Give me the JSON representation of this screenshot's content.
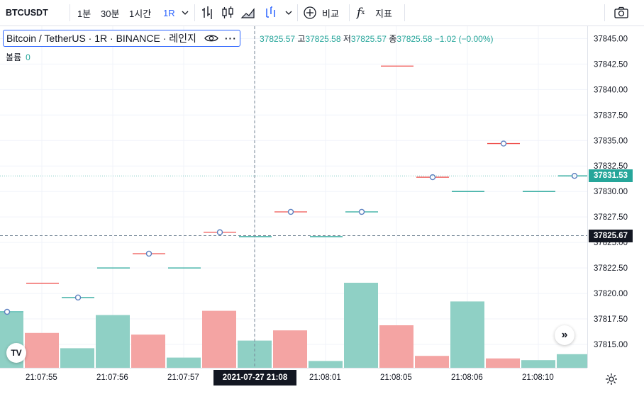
{
  "toolbar": {
    "symbol": "BTCUSDT",
    "intervals": [
      "1분",
      "30분",
      "1시간",
      "1R"
    ],
    "active_interval": "1R",
    "compare_label": "비교",
    "indicators_label": "지표"
  },
  "legend": {
    "title": "Bitcoin / TetherUS · 1R · BINANCE · 레인지",
    "open_label": "",
    "open": "37825.57",
    "high_label": "고",
    "high": "37825.58",
    "low_label": "저",
    "low": "37825.57",
    "close_label": "종",
    "close": "37825.58",
    "change": "−1.02 (−0.00%)",
    "volume_label": "볼륨",
    "volume": "0"
  },
  "price_axis": {
    "ticks": [
      "37845.00",
      "37842.50",
      "37840.00",
      "37837.50",
      "37835.00",
      "37832.50",
      "37830.00",
      "37827.50",
      "37825.00",
      "37822.50",
      "37820.00",
      "37817.50",
      "37815.00"
    ],
    "last_price": "37831.53",
    "crosshair_price": "37825.67"
  },
  "time_axis": {
    "labels": [
      "21:07:55",
      "21:07:56",
      "21:07:57",
      "21:08:01",
      "21:08:05",
      "21:08:06",
      "21:08:10"
    ],
    "crosshair_time": "2021-07-27  21:08"
  },
  "colors": {
    "up": "#26a69a",
    "down": "#ef5350",
    "vol_up": "#8fd0c5",
    "vol_down": "#f4a4a3",
    "accent": "#2962ff"
  },
  "chart_data": {
    "type": "candlestick",
    "ylim": [
      37812.5,
      37846
    ],
    "bars": [
      {
        "price": 37818.2,
        "dir": "up",
        "volume": 0.65,
        "circle": true
      },
      {
        "price": 37821.0,
        "dir": "down",
        "volume": 0.41
      },
      {
        "price": 37819.6,
        "dir": "up",
        "volume": 0.23,
        "circle": true
      },
      {
        "price": 37822.5,
        "dir": "up",
        "volume": 0.62
      },
      {
        "price": 37823.9,
        "dir": "down",
        "volume": 0.39,
        "circle": true
      },
      {
        "price": 37822.5,
        "dir": "up",
        "volume": 0.12
      },
      {
        "price": 37826.0,
        "dir": "down",
        "volume": 0.67,
        "circle": true
      },
      {
        "price": 37825.57,
        "dir": "up",
        "volume": 0.32
      },
      {
        "price": 37828.0,
        "dir": "down",
        "volume": 0.44,
        "circle": true
      },
      {
        "price": 37825.57,
        "dir": "up",
        "volume": 0.08
      },
      {
        "price": 37828.0,
        "dir": "up",
        "volume": 1.0,
        "circle": true
      },
      {
        "price": 37842.3,
        "dir": "down",
        "volume": 0.5
      },
      {
        "price": 37831.4,
        "dir": "down",
        "volume": 0.14,
        "circle": true
      },
      {
        "price": 37830.0,
        "dir": "up",
        "volume": 0.78
      },
      {
        "price": 37834.7,
        "dir": "down",
        "volume": 0.11,
        "circle": true
      },
      {
        "price": 37830.0,
        "dir": "up",
        "volume": 0.09
      },
      {
        "price": 37831.53,
        "dir": "up",
        "volume": 0.16,
        "circle": true
      }
    ]
  }
}
